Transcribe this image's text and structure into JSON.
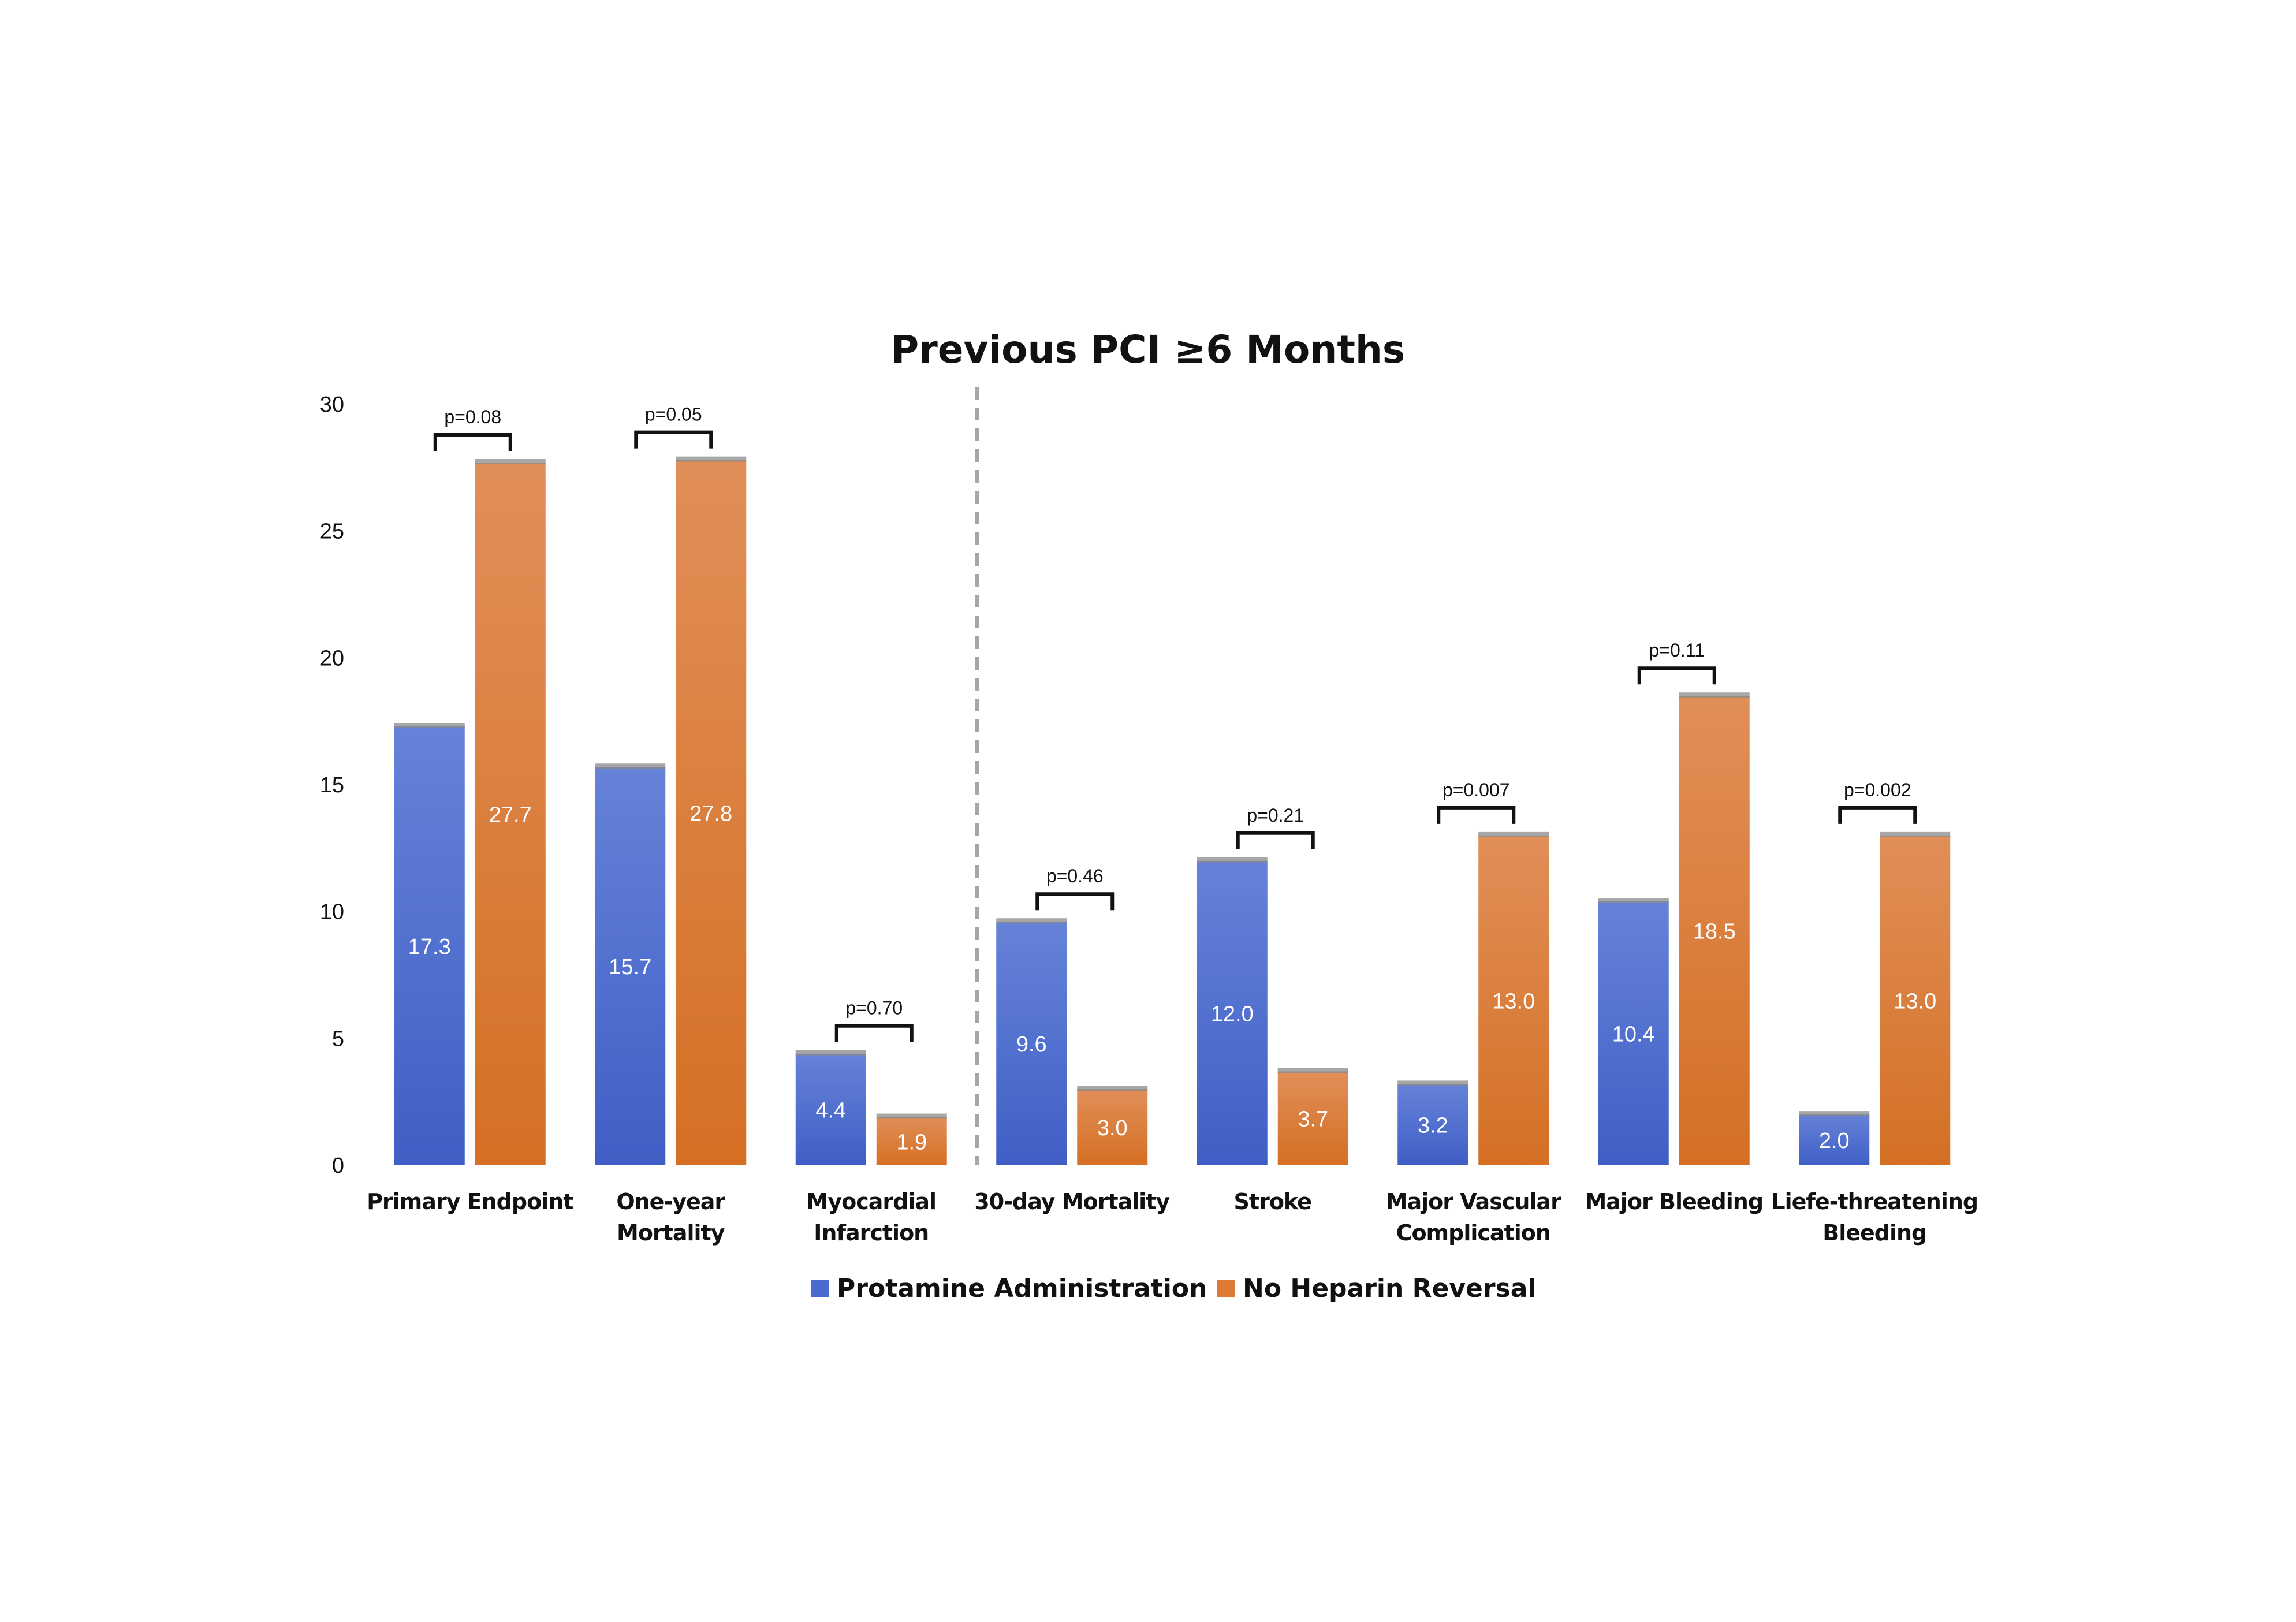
{
  "chart_data": {
    "type": "bar",
    "title": "Previous PCI ≥6 Months",
    "categories": [
      [
        "Primary Endpoint"
      ],
      [
        "One-year",
        "Mortality"
      ],
      [
        "Myocardial",
        "Infarction"
      ],
      [
        "30-day Mortality"
      ],
      [
        "Stroke"
      ],
      [
        "Major Vascular",
        "Complication"
      ],
      [
        "Major Bleeding"
      ],
      [
        "Liefe-threatening",
        "Bleeding"
      ]
    ],
    "series": [
      {
        "name": "Protamine Administration",
        "color": "#4a6ad0",
        "values": [
          17.3,
          15.7,
          4.4,
          9.6,
          12.0,
          3.2,
          10.4,
          2.0
        ],
        "labels": [
          "17.3",
          "15.7",
          "4.4",
          "9.6",
          "12.0",
          "3.2",
          "10.4",
          "2.0"
        ]
      },
      {
        "name": "No Heparin Reversal",
        "color": "#dd7a33",
        "values": [
          27.7,
          27.8,
          1.9,
          3.0,
          3.7,
          13.0,
          18.5,
          13.0
        ],
        "labels": [
          "27.7",
          "27.8",
          "1.9",
          "3.0",
          "3.7",
          "13.0",
          "18.5",
          "13.0"
        ]
      }
    ],
    "p_values": [
      "p=0.08",
      "p=0.05",
      "p=0.70",
      "p=0.46",
      "p=0.21",
      "p=0.007",
      "p=0.11",
      "p=0.002"
    ],
    "ylim": [
      0,
      30
    ],
    "yticks": [
      "0",
      "5",
      "10",
      "15",
      "20",
      "25",
      "30"
    ],
    "xlabel": "",
    "ylabel": "",
    "grid": false,
    "legend_position": "bottom",
    "divider": "dashed vertical line between Myocardial Infarction and 30-day Mortality"
  }
}
